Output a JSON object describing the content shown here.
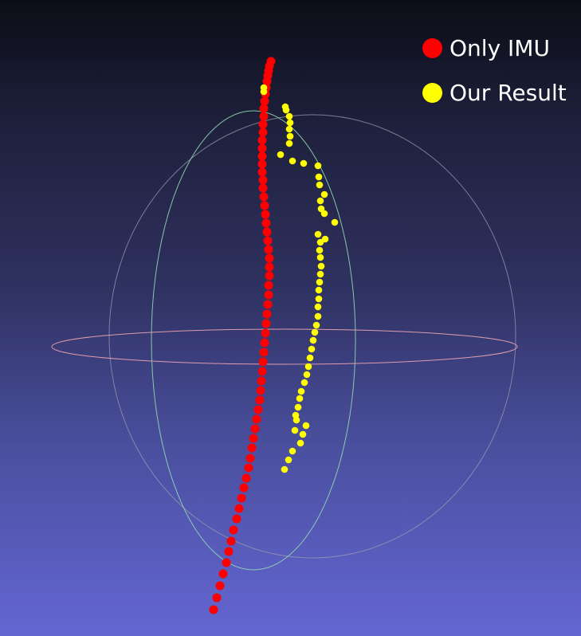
{
  "legend": [
    {
      "label": "Only IMU",
      "color": "#ff0000"
    },
    {
      "label": "Our Result",
      "color": "#ffff00"
    }
  ],
  "colors": {
    "background_top": "#0b0d16",
    "background_bottom": "#6466d2",
    "horizontal_ring": "#e8a0b0",
    "vertical_ring": "#8fd8b0",
    "depth_ring": "#9a9ab0"
  },
  "chart_data": {
    "type": "scatter",
    "view": "3d-trajectory",
    "grid": false,
    "legend_position": "top-right",
    "series": [
      {
        "name": "Only IMU",
        "color": "#ff0000",
        "points": [
          [
            268,
            765
          ],
          [
            272,
            750
          ],
          [
            276,
            735
          ],
          [
            280,
            720
          ],
          [
            284,
            706
          ],
          [
            287,
            692
          ],
          [
            290,
            679
          ],
          [
            293,
            665
          ],
          [
            297,
            651
          ],
          [
            300,
            638
          ],
          [
            303,
            625
          ],
          [
            306,
            612
          ],
          [
            309,
            600
          ],
          [
            312,
            587
          ],
          [
            314,
            575
          ],
          [
            316,
            562
          ],
          [
            318,
            550
          ],
          [
            320,
            538
          ],
          [
            322,
            526
          ],
          [
            324,
            514
          ],
          [
            326,
            502
          ],
          [
            327,
            490
          ],
          [
            328,
            478
          ],
          [
            329,
            466
          ],
          [
            330,
            454
          ],
          [
            331,
            442
          ],
          [
            332,
            430
          ],
          [
            333,
            418
          ],
          [
            334,
            406
          ],
          [
            335,
            394
          ],
          [
            336,
            382
          ],
          [
            337,
            370
          ],
          [
            337,
            358
          ],
          [
            338,
            346
          ],
          [
            338,
            335
          ],
          [
            338,
            324
          ],
          [
            337,
            313
          ],
          [
            336,
            302
          ],
          [
            335,
            291
          ],
          [
            334,
            280
          ],
          [
            333,
            269
          ],
          [
            332,
            258
          ],
          [
            331,
            247
          ],
          [
            330,
            236
          ],
          [
            330,
            226
          ],
          [
            329,
            216
          ],
          [
            329,
            206
          ],
          [
            329,
            196
          ],
          [
            329,
            186
          ],
          [
            329,
            176
          ],
          [
            330,
            166
          ],
          [
            330,
            156
          ],
          [
            331,
            146
          ],
          [
            331,
            136
          ],
          [
            332,
            127
          ],
          [
            333,
            118
          ],
          [
            334,
            110
          ],
          [
            335,
            102
          ],
          [
            336,
            95
          ],
          [
            337,
            89
          ],
          [
            338,
            83
          ],
          [
            340,
            77
          ]
        ]
      },
      {
        "name": "Our Result",
        "color": "#ffff00",
        "points": [
          [
            357,
            589
          ],
          [
            362,
            577
          ],
          [
            367,
            566
          ],
          [
            377,
            556
          ],
          [
            384,
            534
          ],
          [
            380,
            545
          ],
          [
            370,
            540
          ],
          [
            372,
            527
          ],
          [
            371,
            521
          ],
          [
            374,
            511
          ],
          [
            376,
            500
          ],
          [
            378,
            491
          ],
          [
            382,
            480
          ],
          [
            385,
            470
          ],
          [
            387,
            460
          ],
          [
            389,
            449
          ],
          [
            391,
            438
          ],
          [
            393,
            427
          ],
          [
            395,
            417
          ],
          [
            397,
            408
          ],
          [
            399,
            397
          ],
          [
            399,
            385
          ],
          [
            400,
            375
          ],
          [
            400,
            364
          ],
          [
            401,
            354
          ],
          [
            402,
            344
          ],
          [
            403,
            334
          ],
          [
            402,
            323
          ],
          [
            401,
            314
          ],
          [
            402,
            304
          ],
          [
            408,
            300
          ],
          [
            399,
            294
          ],
          [
            420,
            279
          ],
          [
            407,
            268
          ],
          [
            403,
            262
          ],
          [
            402,
            252
          ],
          [
            407,
            244
          ],
          [
            401,
            232
          ],
          [
            400,
            222
          ],
          [
            399,
            208
          ],
          [
            381,
            205
          ],
          [
            367,
            202
          ],
          [
            352,
            194
          ],
          [
            363,
            180
          ],
          [
            364,
            171
          ],
          [
            363,
            162
          ],
          [
            364,
            154
          ],
          [
            363,
            146
          ],
          [
            359,
            138
          ],
          [
            358,
            134
          ],
          [
            331,
            110
          ],
          [
            331,
            115
          ]
        ]
      }
    ]
  }
}
